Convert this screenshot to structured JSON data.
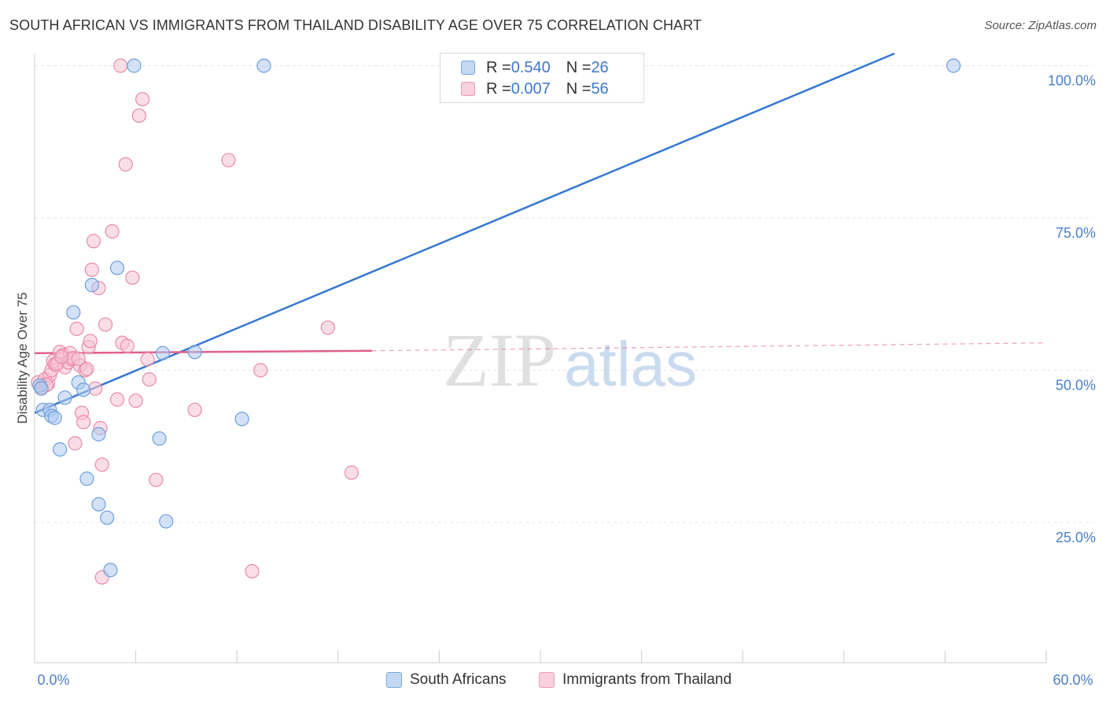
{
  "chart_data": {
    "type": "scatter",
    "title": "SOUTH AFRICAN VS IMMIGRANTS FROM THAILAND DISABILITY AGE OVER 75 CORRELATION CHART",
    "source": "Source: ZipAtlas.com",
    "ylabel": "Disability Age Over 75",
    "xlim": [
      0,
      60
    ],
    "ylim": [
      2,
      102
    ],
    "x_tick_labels": [
      "0.0%",
      "60.0%"
    ],
    "y_ticks": [
      {
        "value": 25,
        "label": "25.0%"
      },
      {
        "value": 50,
        "label": "50.0%"
      },
      {
        "value": 75,
        "label": "75.0%"
      },
      {
        "value": 100,
        "label": "100.0%"
      }
    ],
    "watermark": {
      "zip": "ZIP",
      "atlas": "atlas"
    },
    "legend": {
      "r_label": "R = ",
      "n_label": "N = ",
      "entries": [
        {
          "r": "0.540",
          "n": "26"
        },
        {
          "r": "0.007",
          "n": "56"
        }
      ]
    },
    "series": [
      {
        "name": "South Africans",
        "color": "#6c9fdc",
        "fill": "#aecbf0",
        "line_color": "#3578d0",
        "trend": {
          "x0": 0,
          "y0": 43.0,
          "x1": 51,
          "y1": 102
        },
        "points": [
          [
            0.3,
            47.5
          ],
          [
            0.5,
            43.5
          ],
          [
            0.9,
            43.5
          ],
          [
            1.0,
            42.5
          ],
          [
            1.2,
            42.2
          ],
          [
            1.5,
            37.0
          ],
          [
            1.8,
            45.5
          ],
          [
            2.3,
            59.5
          ],
          [
            2.6,
            48.0
          ],
          [
            2.9,
            46.8
          ],
          [
            3.1,
            32.2
          ],
          [
            3.4,
            64.0
          ],
          [
            3.8,
            28.0
          ],
          [
            4.3,
            25.8
          ],
          [
            4.5,
            17.2
          ],
          [
            4.9,
            66.8
          ],
          [
            3.8,
            39.5
          ],
          [
            5.9,
            100.0
          ],
          [
            7.4,
            38.8
          ],
          [
            7.6,
            52.8
          ],
          [
            7.8,
            25.2
          ],
          [
            9.5,
            53.0
          ],
          [
            12.3,
            42.0
          ],
          [
            13.6,
            100.0
          ],
          [
            54.5,
            100.0
          ],
          [
            0.4,
            47.0
          ]
        ]
      },
      {
        "name": "Immigrants from Thailand",
        "color": "#e98aa8",
        "fill": "#f6c3d3",
        "line_color": "#e0608a",
        "trend_solid": {
          "x0": 0,
          "y0": 52.8,
          "x1": 20,
          "y1": 53.2
        },
        "trend_dashed": {
          "x0": 20,
          "y0": 53.2,
          "x1": 60,
          "y1": 54.5
        },
        "points": [
          [
            0.2,
            48.0
          ],
          [
            0.4,
            47.2
          ],
          [
            0.6,
            48.5
          ],
          [
            0.8,
            47.8
          ],
          [
            0.9,
            49.2
          ],
          [
            1.0,
            50.0
          ],
          [
            1.1,
            51.5
          ],
          [
            1.2,
            51.0
          ],
          [
            1.4,
            51.2
          ],
          [
            1.5,
            53.0
          ],
          [
            1.7,
            52.5
          ],
          [
            1.8,
            50.5
          ],
          [
            2.0,
            51.3
          ],
          [
            2.1,
            52.8
          ],
          [
            2.2,
            51.8
          ],
          [
            2.3,
            52.0
          ],
          [
            2.4,
            38.0
          ],
          [
            2.5,
            56.8
          ],
          [
            2.7,
            50.8
          ],
          [
            2.8,
            43.0
          ],
          [
            2.9,
            41.5
          ],
          [
            3.0,
            50.0
          ],
          [
            3.2,
            53.8
          ],
          [
            3.3,
            54.8
          ],
          [
            3.4,
            66.5
          ],
          [
            3.5,
            71.2
          ],
          [
            3.6,
            47.0
          ],
          [
            3.8,
            63.5
          ],
          [
            3.9,
            40.5
          ],
          [
            4.0,
            34.5
          ],
          [
            4.0,
            16.0
          ],
          [
            4.2,
            57.5
          ],
          [
            4.6,
            72.8
          ],
          [
            4.9,
            45.2
          ],
          [
            5.1,
            100.0
          ],
          [
            5.2,
            54.5
          ],
          [
            5.5,
            54.0
          ],
          [
            5.4,
            83.8
          ],
          [
            5.8,
            65.2
          ],
          [
            6.0,
            45.0
          ],
          [
            6.2,
            91.8
          ],
          [
            6.4,
            94.5
          ],
          [
            6.7,
            51.8
          ],
          [
            6.8,
            48.5
          ],
          [
            7.2,
            32.0
          ],
          [
            9.5,
            43.5
          ],
          [
            11.5,
            84.5
          ],
          [
            12.9,
            17.0
          ],
          [
            13.4,
            50.0
          ],
          [
            17.4,
            57.0
          ],
          [
            18.8,
            33.2
          ],
          [
            1.3,
            51.0
          ],
          [
            2.6,
            51.9
          ],
          [
            0.7,
            47.6
          ],
          [
            1.6,
            52.2
          ],
          [
            3.1,
            50.2
          ]
        ]
      }
    ]
  }
}
